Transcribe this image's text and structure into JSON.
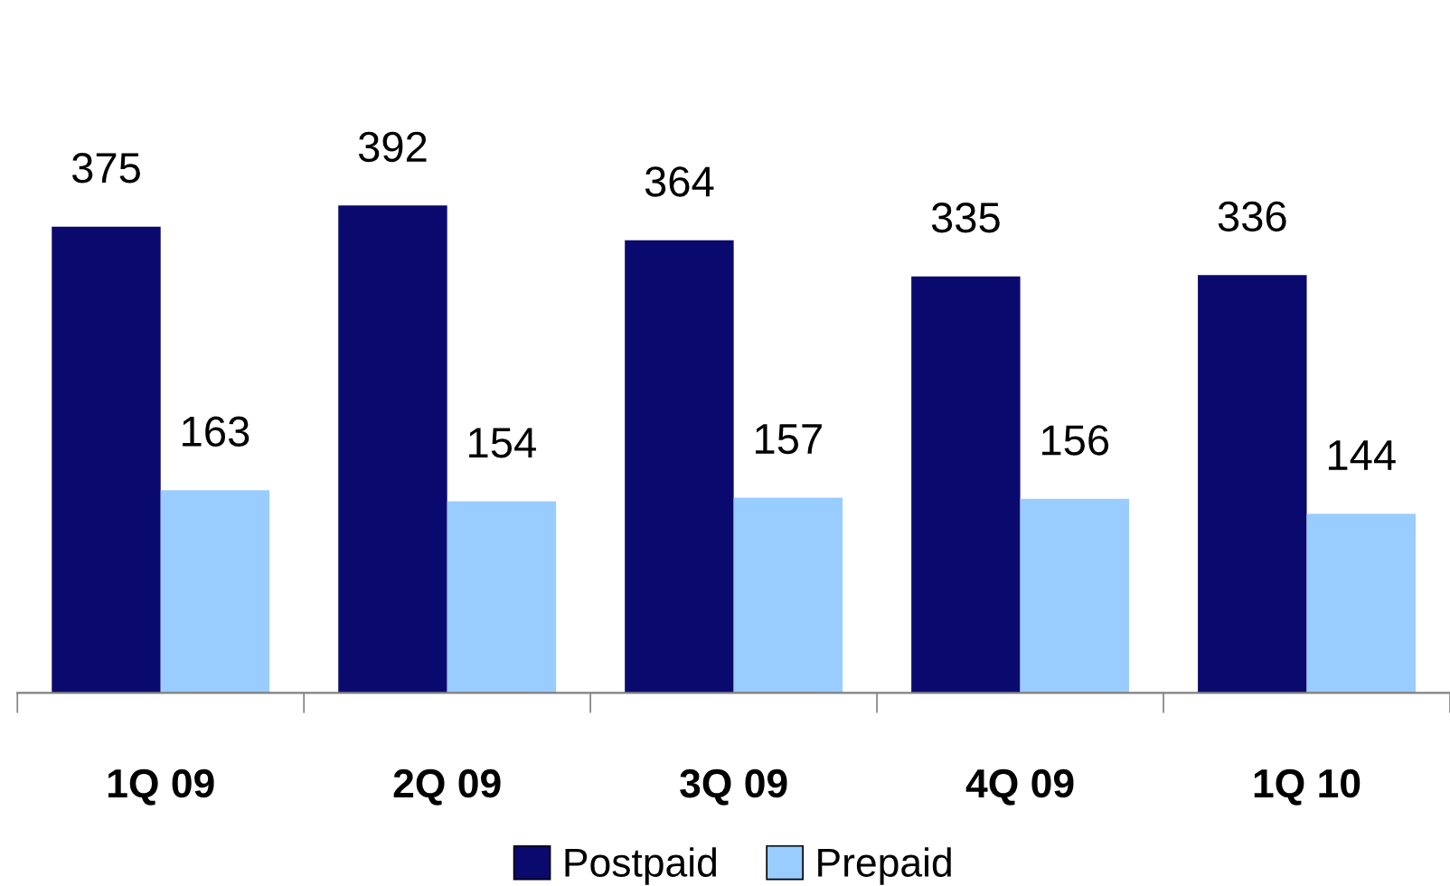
{
  "chart_data": {
    "type": "bar",
    "categories": [
      "1Q 09",
      "2Q 09",
      "3Q 09",
      "4Q 09",
      "1Q 10"
    ],
    "series": [
      {
        "name": "Postpaid",
        "color": "#0a0a6e",
        "values": [
          375,
          392,
          364,
          335,
          336
        ]
      },
      {
        "name": "Prepaid",
        "color": "#99ccff",
        "values": [
          163,
          154,
          157,
          156,
          144
        ]
      }
    ],
    "data_labels": true,
    "legend": "bottom",
    "grid": false,
    "tick_labels": "x"
  }
}
